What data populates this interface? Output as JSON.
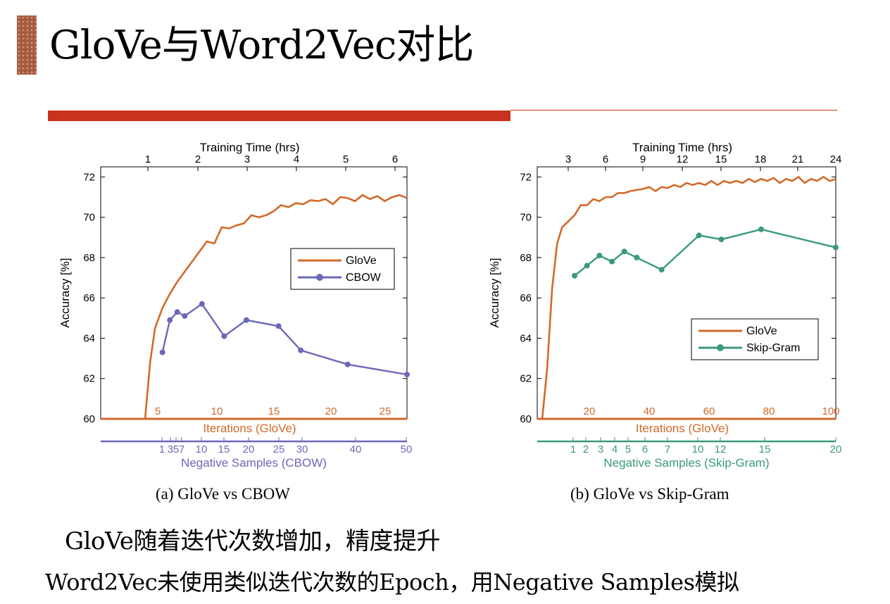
{
  "title": "GloVe与Word2Vec对比",
  "captions": [
    "(a)  GloVe vs CBOW",
    "(b)  GloVe vs Skip-Gram"
  ],
  "bullets": [
    "GloVe随着迭代次数增加，精度提升",
    "Word2Vec未使用类似迭代次数的Epoch，用Negative Samples模拟"
  ],
  "colors": {
    "accent": "#c8321e",
    "glove": "#d2692a",
    "cbow": "#6b68b8",
    "skipgram": "#3a9a7a"
  },
  "chart_data": [
    {
      "type": "line",
      "ylabel": "Accuracy [%]",
      "ylim": [
        60,
        72.5
      ],
      "yticks": [
        60,
        62,
        64,
        66,
        68,
        70,
        72
      ],
      "top_axis": {
        "label": "Training Time (hrs)",
        "ticks": [
          "1",
          "2",
          "3",
          "4",
          "5",
          "6"
        ]
      },
      "iter_axis": {
        "label": "Iterations (GloVe)",
        "ticks": [
          "5",
          "10",
          "15",
          "20",
          "25"
        ]
      },
      "neg_axis": {
        "label": "Negative Samples (CBOW)",
        "ticks": [
          "1",
          "3",
          "5",
          "7",
          "10",
          "15",
          "20",
          "25",
          "30",
          "40",
          "50"
        ]
      },
      "series": [
        {
          "name": "GloVe",
          "x": [
            0.9,
            1.0,
            1.1,
            1.25,
            1.4,
            1.55,
            1.7,
            1.85,
            2.0,
            2.15,
            2.3,
            2.45,
            2.6,
            2.75,
            2.9,
            3.05,
            3.2,
            3.35,
            3.5,
            3.65,
            3.8,
            3.95,
            4.1,
            4.25,
            4.4,
            4.55,
            4.7,
            4.85,
            5.0,
            5.15,
            5.3,
            5.45,
            5.6,
            5.75,
            5.9,
            6.05,
            6.2
          ],
          "values": [
            60,
            62.8,
            64.5,
            65.5,
            66.2,
            66.8,
            67.3,
            67.8,
            68.3,
            68.8,
            68.7,
            69.5,
            69.45,
            69.6,
            69.7,
            70.1,
            70.0,
            70.1,
            70.3,
            70.6,
            70.5,
            70.7,
            70.65,
            70.85,
            70.8,
            70.9,
            70.65,
            71.0,
            70.95,
            70.8,
            71.1,
            70.9,
            71.05,
            70.8,
            71.0,
            71.1,
            70.95
          ]
        },
        {
          "name": "CBOW",
          "x": [
            1.25,
            1.4,
            1.55,
            1.7,
            2.05,
            2.5,
            2.95,
            3.6,
            4.05,
            5.0,
            6.2
          ],
          "values": [
            63.3,
            64.9,
            65.3,
            65.1,
            65.7,
            64.1,
            64.9,
            64.6,
            63.4,
            62.7,
            62.2
          ]
        }
      ],
      "xlim": [
        0,
        6.2
      ],
      "legend": "center-right"
    },
    {
      "type": "line",
      "ylabel": "Accuracy [%]",
      "ylim": [
        60,
        72.5
      ],
      "yticks": [
        60,
        62,
        64,
        66,
        68,
        70,
        72
      ],
      "top_axis": {
        "label": "Training Time (hrs)",
        "ticks": [
          "3",
          "6",
          "9",
          "12",
          "15",
          "18",
          "21",
          "24"
        ]
      },
      "iter_axis": {
        "label": "Iterations (GloVe)",
        "ticks": [
          "20",
          "40",
          "60",
          "80",
          "100"
        ]
      },
      "neg_axis": {
        "label": "Negative Samples (Skip-Gram)",
        "ticks": [
          "1",
          "2",
          "3",
          "4",
          "5",
          "6",
          "7",
          "10",
          "12",
          "15",
          "20"
        ]
      },
      "series": [
        {
          "name": "GloVe",
          "x": [
            0.4,
            0.8,
            1.2,
            1.6,
            2.0,
            2.5,
            3.0,
            3.5,
            4.0,
            4.5,
            5.0,
            5.5,
            6.0,
            6.5,
            7.0,
            7.5,
            8.0,
            8.5,
            9.0,
            9.5,
            10.0,
            10.5,
            11.0,
            11.5,
            12.0,
            12.5,
            13.0,
            13.5,
            14.0,
            14.5,
            15.0,
            15.5,
            16.0,
            16.5,
            17.0,
            17.5,
            18.0,
            18.5,
            19.0,
            19.5,
            20.0,
            20.5,
            21.0,
            21.5,
            22.0,
            22.5,
            23.0,
            23.5,
            24.0
          ],
          "values": [
            60,
            62.5,
            66.5,
            68.7,
            69.5,
            69.8,
            70.1,
            70.6,
            70.6,
            70.9,
            70.8,
            71.0,
            71.0,
            71.2,
            71.2,
            71.3,
            71.35,
            71.4,
            71.5,
            71.3,
            71.5,
            71.45,
            71.6,
            71.5,
            71.7,
            71.6,
            71.7,
            71.6,
            71.8,
            71.6,
            71.8,
            71.7,
            71.8,
            71.7,
            71.9,
            71.75,
            71.9,
            71.8,
            71.95,
            71.7,
            71.9,
            71.8,
            72.0,
            71.7,
            71.9,
            71.8,
            72.0,
            71.8,
            71.9
          ]
        },
        {
          "name": "Skip-Gram",
          "x": [
            3.0,
            4.0,
            5.0,
            6.0,
            7.0,
            8.0,
            10.0,
            13.0,
            14.8,
            18.0,
            24.0
          ],
          "values": [
            67.1,
            67.6,
            68.1,
            67.8,
            68.3,
            68.0,
            67.4,
            69.1,
            68.9,
            69.4,
            68.5
          ]
        }
      ],
      "xlim": [
        0,
        24
      ],
      "legend": "lower-right"
    }
  ]
}
